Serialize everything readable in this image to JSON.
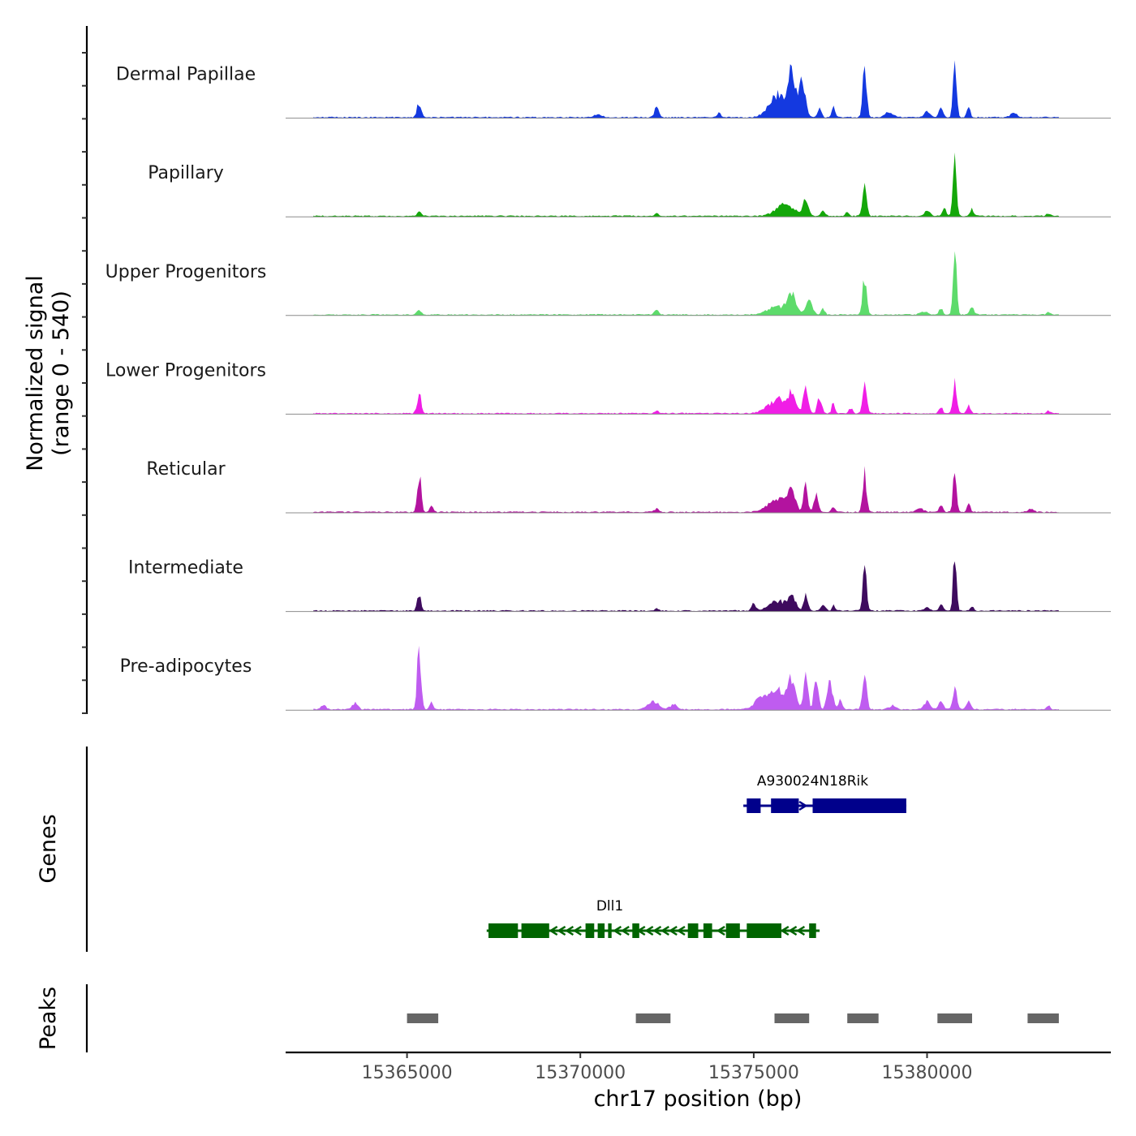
{
  "chart_data": {
    "type": "area",
    "region": "chr17",
    "x_range": [
      15361500,
      15385300
    ],
    "y_axis_title_line1": "Normalized signal",
    "y_axis_title_line2": "(range 0 - 540)",
    "x_axis_title": "chr17 position (bp)",
    "x_ticks": [
      15365000,
      15370000,
      15375000,
      15380000
    ],
    "x_tick_labels": [
      "15365000",
      "15370000",
      "15375000",
      "15380000"
    ],
    "y_range": [
      0,
      540
    ],
    "tracks": [
      {
        "name": "Dermal Papillae",
        "color": "#1439e0",
        "peaks": [
          [
            15365350,
            0.22,
            60
          ],
          [
            15370500,
            0.04,
            120
          ],
          [
            15372200,
            0.16,
            60
          ],
          [
            15374000,
            0.1,
            40
          ],
          [
            15375700,
            0.35,
            250
          ],
          [
            15376100,
            0.7,
            100
          ],
          [
            15376400,
            0.55,
            90
          ],
          [
            15376900,
            0.17,
            50
          ],
          [
            15377300,
            0.18,
            45
          ],
          [
            15378200,
            0.78,
            55
          ],
          [
            15378900,
            0.08,
            120
          ],
          [
            15380000,
            0.09,
            90
          ],
          [
            15380400,
            0.18,
            50
          ],
          [
            15380800,
            0.82,
            50
          ],
          [
            15381200,
            0.15,
            50
          ],
          [
            15382500,
            0.08,
            90
          ]
        ]
      },
      {
        "name": "Papillary",
        "color": "#14a70a",
        "peaks": [
          [
            15365350,
            0.07,
            60
          ],
          [
            15372200,
            0.04,
            60
          ],
          [
            15375900,
            0.18,
            250
          ],
          [
            15376500,
            0.28,
            80
          ],
          [
            15377000,
            0.1,
            60
          ],
          [
            15377700,
            0.08,
            50
          ],
          [
            15378200,
            0.52,
            55
          ],
          [
            15380000,
            0.08,
            90
          ],
          [
            15380500,
            0.14,
            50
          ],
          [
            15380800,
            0.92,
            50
          ],
          [
            15381300,
            0.1,
            50
          ],
          [
            15383500,
            0.04,
            60
          ]
        ]
      },
      {
        "name": "Upper Progenitors",
        "color": "#5ddb6b",
        "peaks": [
          [
            15365350,
            0.07,
            60
          ],
          [
            15372200,
            0.08,
            60
          ],
          [
            15375700,
            0.12,
            300
          ],
          [
            15376100,
            0.28,
            120
          ],
          [
            15376600,
            0.22,
            100
          ],
          [
            15377000,
            0.1,
            50
          ],
          [
            15378200,
            0.6,
            55
          ],
          [
            15379900,
            0.05,
            100
          ],
          [
            15380400,
            0.1,
            50
          ],
          [
            15380800,
            0.95,
            50
          ],
          [
            15381300,
            0.12,
            60
          ],
          [
            15383500,
            0.04,
            50
          ]
        ]
      },
      {
        "name": "Lower Progenitors",
        "color": "#f01ee6",
        "peaks": [
          [
            15365350,
            0.3,
            60
          ],
          [
            15372200,
            0.04,
            60
          ],
          [
            15375700,
            0.22,
            280
          ],
          [
            15376100,
            0.28,
            100
          ],
          [
            15376500,
            0.4,
            70
          ],
          [
            15376900,
            0.28,
            60
          ],
          [
            15377300,
            0.18,
            45
          ],
          [
            15377800,
            0.08,
            50
          ],
          [
            15378200,
            0.58,
            55
          ],
          [
            15380400,
            0.1,
            50
          ],
          [
            15380800,
            0.5,
            55
          ],
          [
            15381200,
            0.12,
            50
          ],
          [
            15383500,
            0.04,
            50
          ]
        ]
      },
      {
        "name": "Reticular",
        "color": "#b3139f",
        "peaks": [
          [
            15365350,
            0.6,
            55
          ],
          [
            15365700,
            0.1,
            50
          ],
          [
            15372200,
            0.05,
            80
          ],
          [
            15375700,
            0.2,
            280
          ],
          [
            15376100,
            0.3,
            100
          ],
          [
            15376500,
            0.4,
            60
          ],
          [
            15376800,
            0.3,
            60
          ],
          [
            15377300,
            0.1,
            50
          ],
          [
            15378200,
            0.6,
            55
          ],
          [
            15379800,
            0.05,
            100
          ],
          [
            15380400,
            0.1,
            60
          ],
          [
            15380800,
            0.65,
            50
          ],
          [
            15381200,
            0.12,
            50
          ],
          [
            15383000,
            0.05,
            80
          ]
        ]
      },
      {
        "name": "Intermediate",
        "color": "#3e0b5e",
        "peaks": [
          [
            15365350,
            0.25,
            55
          ],
          [
            15372200,
            0.03,
            60
          ],
          [
            15375000,
            0.1,
            60
          ],
          [
            15375700,
            0.15,
            250
          ],
          [
            15376100,
            0.22,
            100
          ],
          [
            15376500,
            0.25,
            60
          ],
          [
            15377000,
            0.12,
            60
          ],
          [
            15377300,
            0.1,
            40
          ],
          [
            15378200,
            0.65,
            55
          ],
          [
            15380000,
            0.06,
            80
          ],
          [
            15380400,
            0.1,
            50
          ],
          [
            15380800,
            0.98,
            45
          ],
          [
            15381300,
            0.06,
            50
          ]
        ]
      },
      {
        "name": "Pre-adipocytes",
        "color": "#bf5cf0",
        "peaks": [
          [
            15362600,
            0.08,
            60
          ],
          [
            15363500,
            0.1,
            80
          ],
          [
            15365350,
            1.0,
            55
          ],
          [
            15365700,
            0.1,
            50
          ],
          [
            15372100,
            0.12,
            150
          ],
          [
            15372700,
            0.08,
            100
          ],
          [
            15375200,
            0.15,
            200
          ],
          [
            15375700,
            0.3,
            250
          ],
          [
            15376100,
            0.42,
            100
          ],
          [
            15376500,
            0.6,
            60
          ],
          [
            15376800,
            0.55,
            60
          ],
          [
            15377200,
            0.4,
            80
          ],
          [
            15377500,
            0.18,
            50
          ],
          [
            15378200,
            0.7,
            55
          ],
          [
            15379000,
            0.06,
            100
          ],
          [
            15380000,
            0.12,
            90
          ],
          [
            15380400,
            0.15,
            60
          ],
          [
            15380800,
            0.33,
            60
          ],
          [
            15381200,
            0.12,
            60
          ],
          [
            15383500,
            0.05,
            50
          ]
        ]
      }
    ],
    "genes_axis_label": "Genes",
    "genes": [
      {
        "name": "A930024N18Rik",
        "color": "#00008b",
        "strand": "+",
        "start": 15374700,
        "end": 15379400,
        "label_x": 15376700,
        "exons": [
          [
            15374800,
            15375200
          ],
          [
            15375500,
            15376300
          ],
          [
            15376700,
            15379400
          ]
        ]
      },
      {
        "name": "Dll1",
        "color": "#006400",
        "strand": "-",
        "start": 15367300,
        "end": 15376900,
        "label_x": 15370850,
        "exons": [
          [
            15367350,
            15368200
          ],
          [
            15368300,
            15369100
          ],
          [
            15370150,
            15370400
          ],
          [
            15370500,
            15370700
          ],
          [
            15370800,
            15370900
          ],
          [
            15371500,
            15371700
          ],
          [
            15373100,
            15373400
          ],
          [
            15373550,
            15373800
          ],
          [
            15374200,
            15374600
          ],
          [
            15374800,
            15375800
          ],
          [
            15376600,
            15376800
          ]
        ]
      }
    ],
    "peaks_axis_label": "Peaks",
    "peak_regions": [
      [
        15365000,
        15365900
      ],
      [
        15371600,
        15372600
      ],
      [
        15375600,
        15376600
      ],
      [
        15377700,
        15378600
      ],
      [
        15380300,
        15381300
      ],
      [
        15382900,
        15383800
      ]
    ],
    "peak_region_color": "#666666"
  }
}
